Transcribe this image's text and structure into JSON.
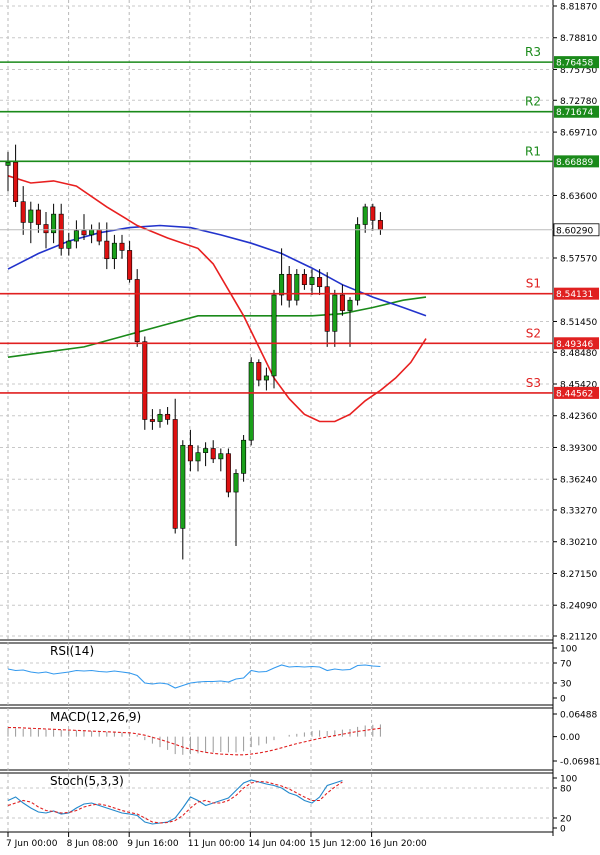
{
  "chart_data": {
    "type": "candlestick",
    "main": {
      "y_ticks": [
        "8.81870",
        "8.78810",
        "8.75750",
        "8.72780",
        "8.69710",
        "8.63600",
        "8.57570",
        "8.51450",
        "8.48480",
        "8.45420",
        "8.42360",
        "8.39300",
        "8.36240",
        "8.33270",
        "8.30210",
        "8.27150",
        "8.24090",
        "8.21120"
      ],
      "ylim": [
        8.2112,
        8.8187
      ],
      "levels": [
        {
          "name": "R3",
          "value": 8.76458,
          "label": "8.76458",
          "color": "#1a8a1a"
        },
        {
          "name": "R2",
          "value": 8.71674,
          "label": "8.71674",
          "color": "#1a8a1a"
        },
        {
          "name": "R1",
          "value": 8.66889,
          "label": "8.66889",
          "color": "#1a8a1a"
        },
        {
          "name": "S1",
          "value": 8.54131,
          "label": "8.54131",
          "color": "#e02020"
        },
        {
          "name": "S2",
          "value": 8.49346,
          "label": "8.49346",
          "color": "#e02020"
        },
        {
          "name": "S3",
          "value": 8.44562,
          "label": "8.44562",
          "color": "#e02020"
        }
      ],
      "current_price": {
        "value": 8.6029,
        "label": "8.60290"
      },
      "x_labels": [
        "7 Jun 00:00",
        "8 Jun 08:00",
        "9 Jun 16:00",
        "11 Jun 00:00",
        "14 Jun 04:00",
        "15 Jun 12:00",
        "16 Jun 20:00"
      ],
      "candles": [
        {
          "o": 8.665,
          "h": 8.678,
          "l": 8.64,
          "c": 8.668
        },
        {
          "o": 8.668,
          "h": 8.685,
          "l": 8.625,
          "c": 8.63
        },
        {
          "o": 8.63,
          "h": 8.645,
          "l": 8.598,
          "c": 8.61
        },
        {
          "o": 8.61,
          "h": 8.63,
          "l": 8.59,
          "c": 8.622
        },
        {
          "o": 8.622,
          "h": 8.628,
          "l": 8.6,
          "c": 8.608
        },
        {
          "o": 8.608,
          "h": 8.62,
          "l": 8.585,
          "c": 8.6
        },
        {
          "o": 8.6,
          "h": 8.628,
          "l": 8.59,
          "c": 8.618
        },
        {
          "o": 8.618,
          "h": 8.628,
          "l": 8.578,
          "c": 8.585
        },
        {
          "o": 8.585,
          "h": 8.6,
          "l": 8.578,
          "c": 8.592
        },
        {
          "o": 8.592,
          "h": 8.612,
          "l": 8.585,
          "c": 8.602
        },
        {
          "o": 8.602,
          "h": 8.618,
          "l": 8.593,
          "c": 8.598
        },
        {
          "o": 8.598,
          "h": 8.608,
          "l": 8.59,
          "c": 8.603
        },
        {
          "o": 8.603,
          "h": 8.61,
          "l": 8.588,
          "c": 8.592
        },
        {
          "o": 8.592,
          "h": 8.61,
          "l": 8.565,
          "c": 8.575
        },
        {
          "o": 8.575,
          "h": 8.598,
          "l": 8.565,
          "c": 8.59
        },
        {
          "o": 8.59,
          "h": 8.598,
          "l": 8.575,
          "c": 8.583
        },
        {
          "o": 8.583,
          "h": 8.592,
          "l": 8.552,
          "c": 8.555
        },
        {
          "o": 8.555,
          "h": 8.565,
          "l": 8.49,
          "c": 8.495
        },
        {
          "o": 8.495,
          "h": 8.5,
          "l": 8.41,
          "c": 8.42
        },
        {
          "o": 8.42,
          "h": 8.43,
          "l": 8.41,
          "c": 8.418
        },
        {
          "o": 8.418,
          "h": 8.43,
          "l": 8.412,
          "c": 8.425
        },
        {
          "o": 8.425,
          "h": 8.432,
          "l": 8.415,
          "c": 8.42
        },
        {
          "o": 8.42,
          "h": 8.44,
          "l": 8.31,
          "c": 8.315
        },
        {
          "o": 8.315,
          "h": 8.4,
          "l": 8.285,
          "c": 8.395
        },
        {
          "o": 8.395,
          "h": 8.41,
          "l": 8.37,
          "c": 8.38
        },
        {
          "o": 8.38,
          "h": 8.395,
          "l": 8.37,
          "c": 8.388
        },
        {
          "o": 8.388,
          "h": 8.398,
          "l": 8.375,
          "c": 8.392
        },
        {
          "o": 8.392,
          "h": 8.4,
          "l": 8.378,
          "c": 8.382
        },
        {
          "o": 8.382,
          "h": 8.392,
          "l": 8.37,
          "c": 8.387
        },
        {
          "o": 8.387,
          "h": 8.392,
          "l": 8.345,
          "c": 8.35
        },
        {
          "o": 8.35,
          "h": 8.372,
          "l": 8.298,
          "c": 8.368
        },
        {
          "o": 8.368,
          "h": 8.405,
          "l": 8.36,
          "c": 8.4
        },
        {
          "o": 8.4,
          "h": 8.48,
          "l": 8.395,
          "c": 8.475
        },
        {
          "o": 8.475,
          "h": 8.478,
          "l": 8.452,
          "c": 8.458
        },
        {
          "o": 8.458,
          "h": 8.47,
          "l": 8.448,
          "c": 8.462
        },
        {
          "o": 8.462,
          "h": 8.545,
          "l": 8.45,
          "c": 8.54
        },
        {
          "o": 8.54,
          "h": 8.585,
          "l": 8.53,
          "c": 8.56
        },
        {
          "o": 8.56,
          "h": 8.568,
          "l": 8.528,
          "c": 8.535
        },
        {
          "o": 8.535,
          "h": 8.565,
          "l": 8.53,
          "c": 8.56
        },
        {
          "o": 8.56,
          "h": 8.565,
          "l": 8.545,
          "c": 8.55
        },
        {
          "o": 8.55,
          "h": 8.565,
          "l": 8.54,
          "c": 8.557
        },
        {
          "o": 8.557,
          "h": 8.565,
          "l": 8.54,
          "c": 8.548
        },
        {
          "o": 8.548,
          "h": 8.562,
          "l": 8.49,
          "c": 8.505
        },
        {
          "o": 8.505,
          "h": 8.545,
          "l": 8.49,
          "c": 8.54
        },
        {
          "o": 8.54,
          "h": 8.55,
          "l": 8.52,
          "c": 8.525
        },
        {
          "o": 8.525,
          "h": 8.538,
          "l": 8.49,
          "c": 8.535
        },
        {
          "o": 8.535,
          "h": 8.615,
          "l": 8.53,
          "c": 8.608
        },
        {
          "o": 8.608,
          "h": 8.628,
          "l": 8.6,
          "c": 8.625
        },
        {
          "o": 8.625,
          "h": 8.628,
          "l": 8.602,
          "c": 8.612
        },
        {
          "o": 8.612,
          "h": 8.62,
          "l": 8.598,
          "c": 8.603
        }
      ],
      "ma_red": [
        [
          0,
          8.655
        ],
        [
          3,
          8.648
        ],
        [
          6,
          8.65
        ],
        [
          9,
          8.645
        ],
        [
          13,
          8.625
        ],
        [
          17,
          8.607
        ],
        [
          21,
          8.595
        ],
        [
          25,
          8.585
        ],
        [
          27,
          8.57
        ],
        [
          29,
          8.545
        ],
        [
          31,
          8.52
        ],
        [
          33,
          8.49
        ],
        [
          35,
          8.46
        ],
        [
          37,
          8.44
        ],
        [
          39,
          8.425
        ],
        [
          41,
          8.418
        ],
        [
          43,
          8.418
        ],
        [
          45,
          8.425
        ],
        [
          47,
          8.438
        ],
        [
          49,
          8.448
        ],
        [
          51,
          8.46
        ],
        [
          53,
          8.475
        ],
        [
          55,
          8.498
        ]
      ],
      "ma_blue": [
        [
          0,
          8.565
        ],
        [
          4,
          8.58
        ],
        [
          8,
          8.592
        ],
        [
          12,
          8.6
        ],
        [
          16,
          8.605
        ],
        [
          20,
          8.607
        ],
        [
          24,
          8.605
        ],
        [
          28,
          8.598
        ],
        [
          32,
          8.59
        ],
        [
          36,
          8.58
        ],
        [
          40,
          8.566
        ],
        [
          44,
          8.55
        ],
        [
          48,
          8.538
        ],
        [
          52,
          8.528
        ],
        [
          55,
          8.52
        ]
      ],
      "ma_green": [
        [
          0,
          8.48
        ],
        [
          5,
          8.485
        ],
        [
          10,
          8.49
        ],
        [
          15,
          8.5
        ],
        [
          20,
          8.51
        ],
        [
          25,
          8.52
        ],
        [
          30,
          8.52
        ],
        [
          35,
          8.52
        ],
        [
          40,
          8.52
        ],
        [
          44,
          8.522
        ],
        [
          48,
          8.528
        ],
        [
          52,
          8.535
        ],
        [
          55,
          8.538
        ]
      ]
    },
    "rsi": {
      "title": "RSI(14)",
      "y_ticks": [
        "100",
        "70",
        "30",
        "0"
      ],
      "ylim": [
        0,
        100
      ],
      "values": [
        58,
        55,
        56,
        52,
        50,
        52,
        48,
        50,
        52,
        55,
        54,
        55,
        53,
        52,
        54,
        52,
        50,
        45,
        30,
        28,
        30,
        28,
        20,
        25,
        30,
        32,
        33,
        33,
        34,
        32,
        38,
        40,
        55,
        52,
        53,
        60,
        66,
        62,
        63,
        62,
        63,
        62,
        55,
        58,
        56,
        57,
        65,
        66,
        64,
        63
      ]
    },
    "macd": {
      "title": "MACD(12,26,9)",
      "y_ticks": [
        "0.06488",
        "0.00",
        "-0.069813"
      ],
      "ylim": [
        -0.069813,
        0.06488
      ],
      "histogram": [
        0.025,
        0.024,
        0.022,
        0.022,
        0.021,
        0.02,
        0.02,
        0.019,
        0.018,
        0.018,
        0.017,
        0.016,
        0.015,
        0.014,
        0.013,
        0.012,
        0.01,
        0.005,
        -0.01,
        -0.02,
        -0.03,
        -0.038,
        -0.05,
        -0.052,
        -0.05,
        -0.048,
        -0.046,
        -0.045,
        -0.044,
        -0.045,
        -0.045,
        -0.042,
        -0.03,
        -0.025,
        -0.02,
        -0.01,
        0.0,
        0.005,
        0.008,
        0.012,
        0.016,
        0.018,
        0.016,
        0.018,
        0.02,
        0.022,
        0.028,
        0.032,
        0.034,
        0.035
      ],
      "signal": [
        0.026,
        0.026,
        0.025,
        0.024,
        0.023,
        0.022,
        0.021,
        0.02,
        0.019,
        0.018,
        0.017,
        0.016,
        0.015,
        0.014,
        0.013,
        0.012,
        0.011,
        0.008,
        0.004,
        -0.002,
        -0.008,
        -0.015,
        -0.022,
        -0.03,
        -0.036,
        -0.041,
        -0.045,
        -0.048,
        -0.05,
        -0.051,
        -0.052,
        -0.052,
        -0.05,
        -0.047,
        -0.043,
        -0.038,
        -0.032,
        -0.026,
        -0.02,
        -0.015,
        -0.01,
        -0.005,
        -0.001,
        0.003,
        0.007,
        0.011,
        0.015,
        0.018,
        0.021,
        0.024
      ]
    },
    "stoch": {
      "title": "Stoch(5,3,3)",
      "y_ticks": [
        "100",
        "80",
        "20",
        "0"
      ],
      "ylim": [
        0,
        100
      ],
      "k": [
        55,
        62,
        50,
        40,
        32,
        30,
        34,
        28,
        30,
        40,
        48,
        50,
        45,
        40,
        35,
        30,
        28,
        25,
        12,
        8,
        10,
        12,
        20,
        40,
        62,
        55,
        45,
        50,
        55,
        60,
        75,
        90,
        96,
        92,
        88,
        85,
        80,
        70,
        65,
        55,
        50,
        62,
        85,
        90,
        95
      ],
      "d": [
        45,
        50,
        55,
        52,
        42,
        35,
        33,
        30,
        31,
        35,
        42,
        46,
        48,
        45,
        40,
        35,
        31,
        28,
        20,
        12,
        10,
        11,
        15,
        25,
        40,
        52,
        55,
        50,
        50,
        55,
        65,
        80,
        90,
        93,
        92,
        88,
        84,
        78,
        70,
        62,
        55,
        55,
        70,
        82,
        92
      ]
    }
  }
}
